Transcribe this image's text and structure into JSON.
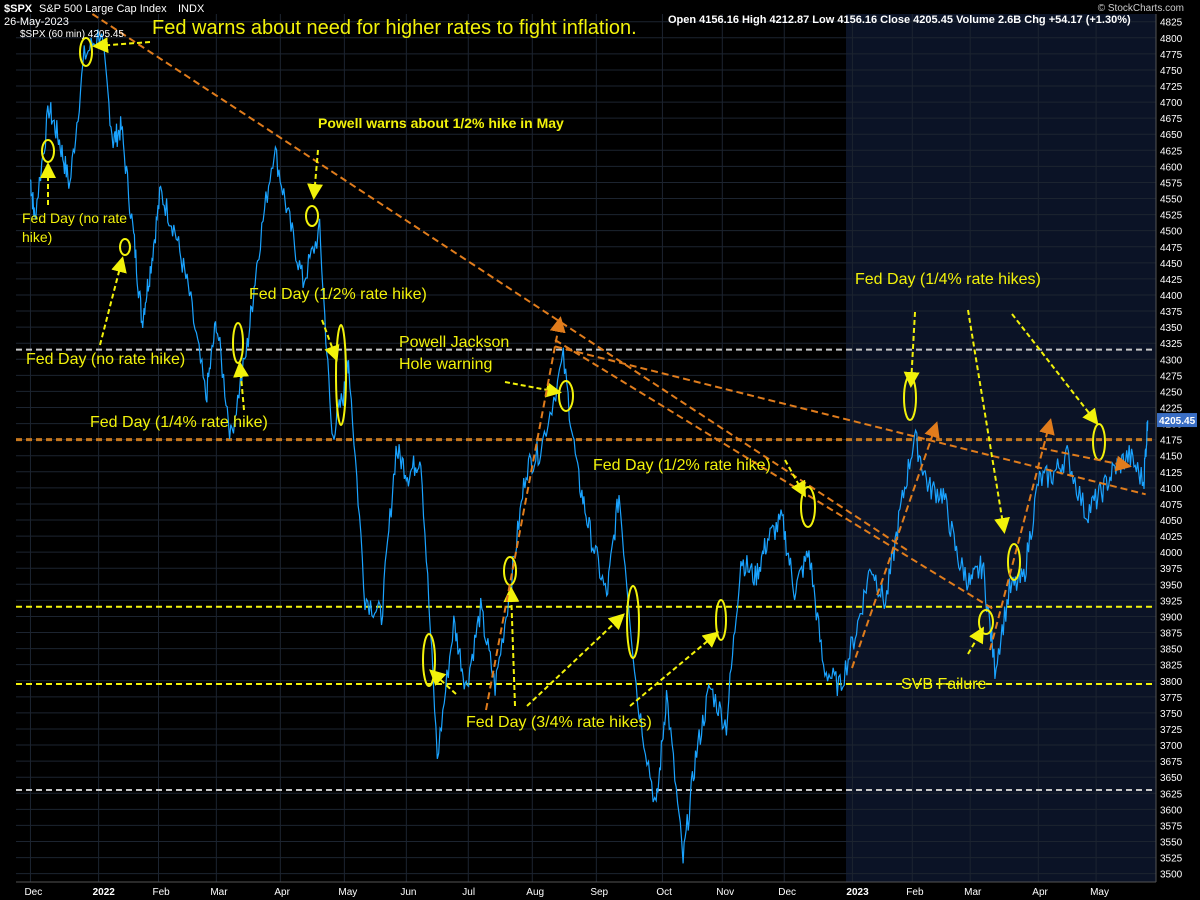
{
  "header": {
    "symbol": "$SPX",
    "name": "S&P 500 Large Cap Index",
    "exchange": "INDX",
    "date": "26-May-2023",
    "legend": "$SPX (60 min) 4205.45",
    "ohlc": "Open 4156.16  High 4212.87  Low 4156.16  Close 4205.45  Volume 2.6B  Chg +54.17 (+1.30%)",
    "watermark": "© StockCharts.com"
  },
  "chart_data": {
    "type": "line",
    "title": "Fed warns about need for higher rates to fight inflation.",
    "interval": "60 min",
    "ylim": [
      3487,
      4837
    ],
    "y_ticks": [
      3500,
      3525,
      3550,
      3575,
      3600,
      3625,
      3650,
      3675,
      3700,
      3725,
      3750,
      3775,
      3800,
      3825,
      3850,
      3875,
      3900,
      3925,
      3950,
      3975,
      4000,
      4025,
      4050,
      4075,
      4100,
      4125,
      4150,
      4175,
      4200,
      4225,
      4250,
      4275,
      4300,
      4325,
      4350,
      4375,
      4400,
      4425,
      4450,
      4475,
      4500,
      4525,
      4550,
      4575,
      4600,
      4625,
      4650,
      4675,
      4700,
      4725,
      4750,
      4775,
      4800,
      4825
    ],
    "last_price": "4205.45",
    "x_ticks": [
      "Dec",
      "2022",
      "Feb",
      "Mar",
      "Apr",
      "May",
      "Jun",
      "Jul",
      "Aug",
      "Sep",
      "Oct",
      "Nov",
      "Dec",
      "2023",
      "Feb",
      "Mar",
      "Apr",
      "May"
    ],
    "series": [
      {
        "color": "#1aa3ff",
        "x": [
          "2021-12-01",
          "2021-12-03",
          "2021-12-10",
          "2021-12-15",
          "2021-12-20",
          "2021-12-27",
          "2022-01-04",
          "2022-01-10",
          "2022-01-14",
          "2022-01-20",
          "2022-01-24",
          "2022-01-28",
          "2022-02-02",
          "2022-02-09",
          "2022-02-16",
          "2022-02-24",
          "2022-03-01",
          "2022-03-08",
          "2022-03-16",
          "2022-03-21",
          "2022-03-29",
          "2022-04-05",
          "2022-04-12",
          "2022-04-20",
          "2022-04-26",
          "2022-05-02",
          "2022-05-04",
          "2022-05-12",
          "2022-05-20",
          "2022-05-27",
          "2022-06-02",
          "2022-06-08",
          "2022-06-16",
          "2022-06-24",
          "2022-06-30",
          "2022-07-07",
          "2022-07-14",
          "2022-07-22",
          "2022-07-29",
          "2022-08-05",
          "2022-08-16",
          "2022-08-23",
          "2022-08-29",
          "2022-09-06",
          "2022-09-12",
          "2022-09-21",
          "2022-09-30",
          "2022-10-05",
          "2022-10-13",
          "2022-10-19",
          "2022-10-26",
          "2022-11-03",
          "2022-11-10",
          "2022-11-17",
          "2022-11-23",
          "2022-11-30",
          "2022-12-06",
          "2022-12-13",
          "2022-12-20",
          "2022-12-28",
          "2023-01-05",
          "2023-01-12",
          "2023-01-19",
          "2023-01-26",
          "2023-02-02",
          "2023-02-09",
          "2023-02-16",
          "2023-02-23",
          "2023-03-01",
          "2023-03-07",
          "2023-03-13",
          "2023-03-20",
          "2023-03-27",
          "2023-04-03",
          "2023-04-10",
          "2023-04-17",
          "2023-04-26",
          "2023-05-03",
          "2023-05-10",
          "2023-05-17",
          "2023-05-24",
          "2023-05-26"
        ],
        "y": [
          4580,
          4520,
          4690,
          4640,
          4570,
          4770,
          4810,
          4640,
          4660,
          4490,
          4360,
          4440,
          4560,
          4500,
          4400,
          4240,
          4360,
          4180,
          4320,
          4460,
          4630,
          4520,
          4420,
          4500,
          4180,
          4250,
          4300,
          3930,
          3900,
          4160,
          4120,
          4150,
          3680,
          3890,
          3790,
          3910,
          3790,
          3960,
          4130,
          4160,
          4300,
          4120,
          4030,
          3930,
          4090,
          3770,
          3600,
          3780,
          3520,
          3680,
          3790,
          3730,
          3990,
          3960,
          4020,
          4050,
          3940,
          4000,
          3820,
          3790,
          3880,
          3980,
          3920,
          4060,
          4180,
          4100,
          4090,
          3990,
          3950,
          3980,
          3820,
          3940,
          3960,
          4110,
          4120,
          4150,
          4060,
          4090,
          4130,
          4150,
          4110,
          4205
        ]
      }
    ],
    "horizontal_levels": [
      {
        "value": 4315,
        "color": "#c8c8c8"
      },
      {
        "value": 4175,
        "color": "#c8781e"
      },
      {
        "value": 3915,
        "color": "#f2f20a"
      },
      {
        "value": 3795,
        "color": "#f2f20a"
      },
      {
        "value": 3630,
        "color": "#c8c8c8"
      }
    ],
    "trendlines": [
      {
        "from": [
          "2021-12-31",
          4837
        ],
        "to": [
          "2023-01-31",
          4000
        ]
      },
      {
        "from": [
          "2022-08-12",
          4330
        ],
        "to": [
          "2023-03-13",
          3910
        ]
      },
      {
        "from": [
          "2022-08-12",
          4320
        ],
        "to": [
          "2023-05-25",
          4090
        ]
      }
    ],
    "annotations": [
      "Fed Day (no rate hike)",
      "Fed Day (no rate hike)",
      "Fed Day (1/4% rate hike)",
      "Powell warns about 1/2% hike in May",
      "Fed Day (1/2% rate hike)",
      "Powell Jackson Hole warning",
      "Fed Day (1/2% rate hike)",
      "Fed Day (3/4% rate hikes)",
      "Fed Day (1/4% rate hikes)",
      "SVB Failure"
    ]
  }
}
